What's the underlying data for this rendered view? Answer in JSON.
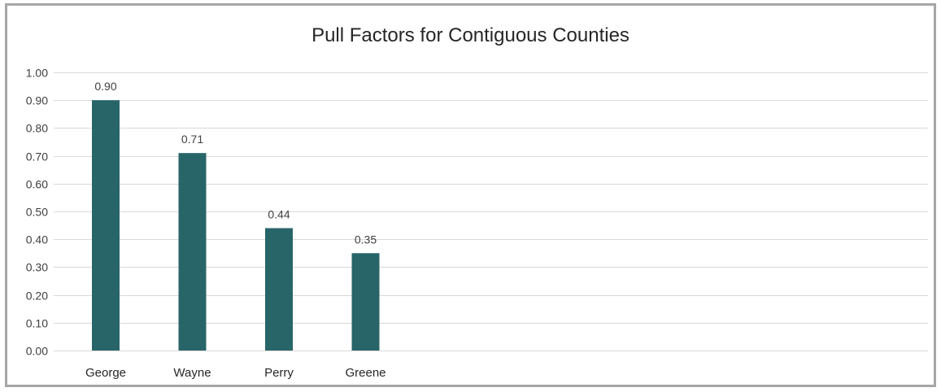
{
  "chart_data": {
    "type": "bar",
    "title": "Pull Factors for Contiguous Counties",
    "xlabel": "",
    "ylabel": "",
    "categories": [
      "George",
      "Wayne",
      "Perry",
      "Greene"
    ],
    "values": [
      0.9,
      0.71,
      0.44,
      0.35
    ],
    "data_labels": [
      "0.90",
      "0.71",
      "0.44",
      "0.35"
    ],
    "ylim": [
      0,
      1.0
    ],
    "y_ticks": [
      "0.00",
      "0.10",
      "0.20",
      "0.30",
      "0.40",
      "0.50",
      "0.60",
      "0.70",
      "0.80",
      "0.90",
      "1.00"
    ],
    "grid": true,
    "legend": "none",
    "colors": {
      "bar": "#286569",
      "grid": "#d9d9d9",
      "frame": "#a6a6a6"
    }
  }
}
